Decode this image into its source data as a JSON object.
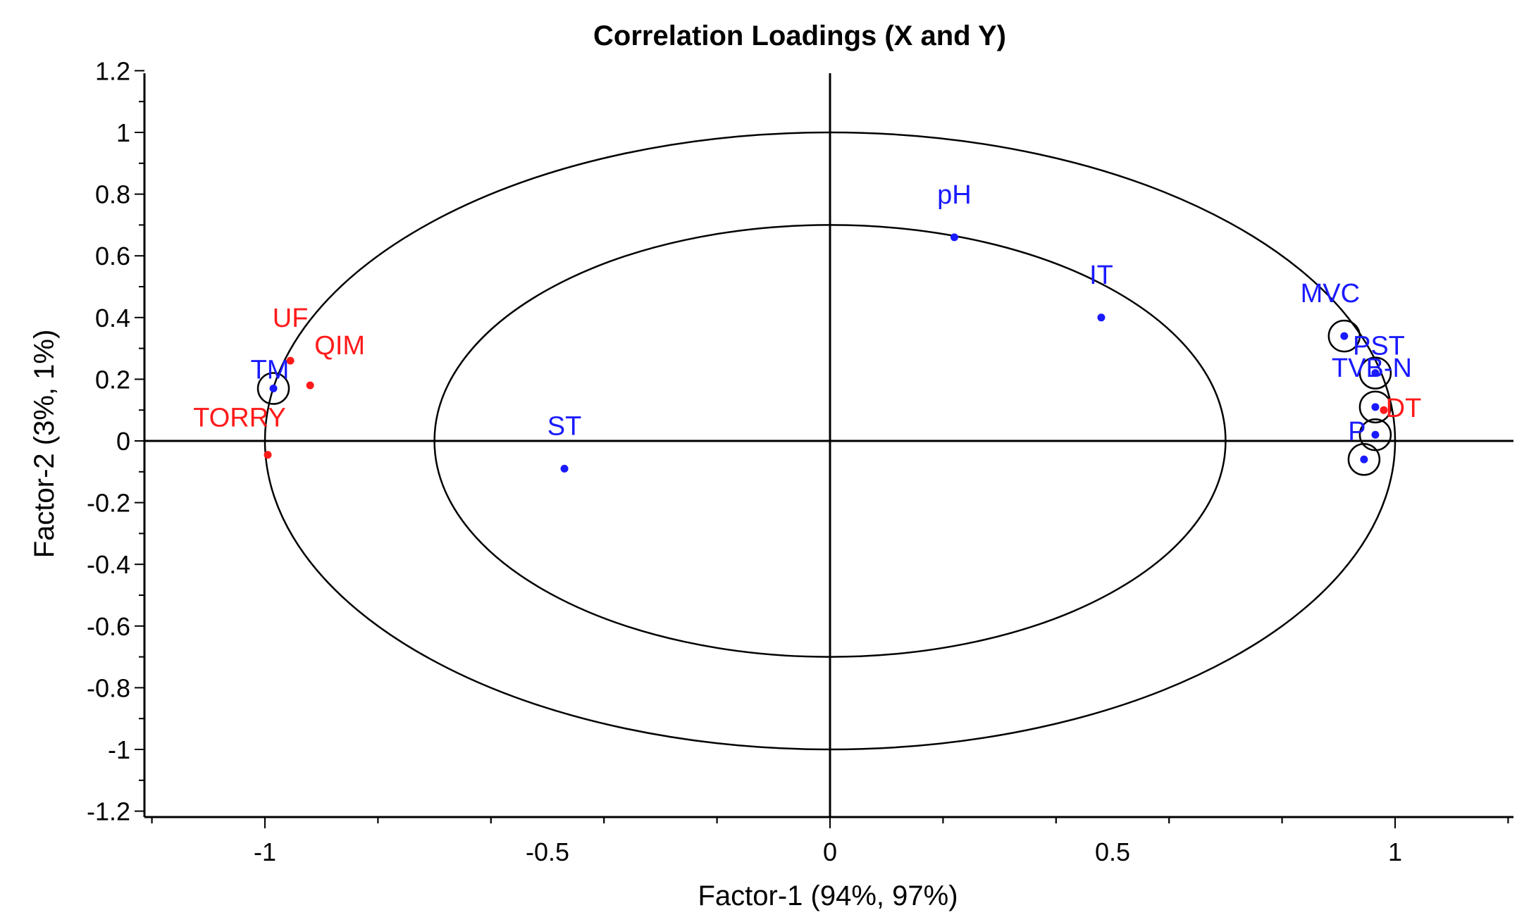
{
  "chart_data": {
    "type": "scatter",
    "title": "Correlation Loadings (X and Y)",
    "xlabel": "Factor-1 (94%, 97%)",
    "ylabel": "Factor-2 (3%, 1%)",
    "xlim": [
      -1.2,
      1.2
    ],
    "ylim": [
      -1.2,
      1.2
    ],
    "x_ticks": [
      -1,
      -0.5,
      0,
      0.5,
      1
    ],
    "x_tick_labels": [
      "-1",
      "-0.5",
      "0",
      "0.5",
      "1"
    ],
    "y_ticks": [
      1.2,
      1,
      0.8,
      0.6,
      0.4,
      0.2,
      0,
      -0.2,
      -0.4,
      -0.6,
      -0.8,
      -1,
      -1.2
    ],
    "y_tick_labels": [
      "1.2",
      "1",
      "0.8",
      "0.6",
      "0.4",
      "0.2",
      "0",
      "-0.2",
      "-0.4",
      "-0.6",
      "-0.8",
      "-1",
      "-1.2"
    ],
    "grid": false,
    "ellipses": [
      1.0,
      0.7
    ],
    "colors": {
      "x_variables": "#1a1aff",
      "y_variables": "#ff1a1a"
    },
    "points": [
      {
        "label": "pH",
        "x": 0.22,
        "y": 0.66,
        "group": "x"
      },
      {
        "label": "IT",
        "x": 0.48,
        "y": 0.4,
        "group": "x"
      },
      {
        "label": "ST",
        "x": -0.47,
        "y": -0.09,
        "group": "x"
      },
      {
        "label": "MVC",
        "x": 0.91,
        "y": 0.34,
        "group": "x",
        "circled": true
      },
      {
        "label": "PST",
        "x": 0.965,
        "y": 0.22,
        "group": "x",
        "circled": true
      },
      {
        "label": "TVB-N",
        "x": 0.965,
        "y": 0.11,
        "group": "x",
        "circled": true
      },
      {
        "label": "P",
        "x": 0.965,
        "y": 0.02,
        "group": "x",
        "circled": true
      },
      {
        "label": "",
        "x": 0.945,
        "y": -0.06,
        "group": "x",
        "circled": true
      },
      {
        "label": "TM",
        "x": -0.985,
        "y": 0.17,
        "group": "x",
        "circled": true
      },
      {
        "label": "UF",
        "x": -0.955,
        "y": 0.26,
        "group": "y"
      },
      {
        "label": "QIM",
        "x": -0.92,
        "y": 0.18,
        "group": "y"
      },
      {
        "label": "TORRY",
        "x": -0.995,
        "y": -0.045,
        "group": "y"
      },
      {
        "label": "DT",
        "x": 0.98,
        "y": 0.1,
        "group": "y"
      }
    ]
  }
}
